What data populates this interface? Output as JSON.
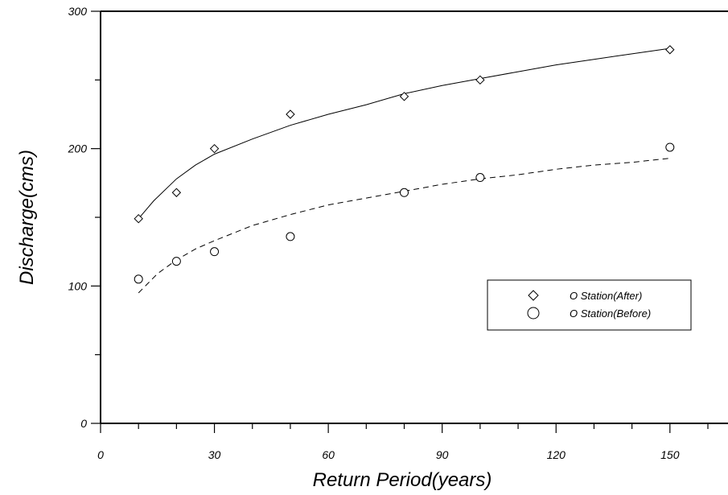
{
  "chart_data": {
    "type": "scatter",
    "title": "",
    "xlabel": "Return Period(years)",
    "ylabel": "Discharge(cms)",
    "xlim": [
      0,
      160
    ],
    "ylim": [
      0,
      300
    ],
    "x_ticks": [
      0,
      30,
      60,
      90,
      120,
      150
    ],
    "x_tick_labels": [
      "0",
      "30",
      "60",
      "90",
      "120",
      "150"
    ],
    "y_ticks": [
      0,
      100,
      200,
      300
    ],
    "y_tick_labels": [
      "0",
      "100",
      "200",
      "300"
    ],
    "grid": false,
    "legend_position": "right",
    "series": [
      {
        "name": "O Station(After)",
        "marker": "diamond",
        "line_style": "solid",
        "x": [
          10,
          20,
          30,
          50,
          80,
          100,
          150
        ],
        "y": [
          149,
          168,
          200,
          225,
          238,
          250,
          272
        ],
        "fit": [
          [
            10,
            149
          ],
          [
            14,
            162
          ],
          [
            20,
            178
          ],
          [
            25,
            188
          ],
          [
            30,
            196
          ],
          [
            40,
            207
          ],
          [
            50,
            217
          ],
          [
            60,
            225
          ],
          [
            70,
            232
          ],
          [
            80,
            240
          ],
          [
            90,
            246
          ],
          [
            100,
            251
          ],
          [
            110,
            256
          ],
          [
            120,
            261
          ],
          [
            130,
            265
          ],
          [
            140,
            269
          ],
          [
            150,
            273
          ]
        ]
      },
      {
        "name": "O Station(Before)",
        "marker": "circle",
        "line_style": "dashed",
        "x": [
          10,
          20,
          30,
          50,
          80,
          100,
          150
        ],
        "y": [
          105,
          118,
          125,
          136,
          168,
          179,
          201
        ],
        "fit": [
          [
            10,
            95
          ],
          [
            15,
            109
          ],
          [
            20,
            119
          ],
          [
            25,
            127
          ],
          [
            30,
            133
          ],
          [
            40,
            144
          ],
          [
            50,
            152
          ],
          [
            60,
            159
          ],
          [
            70,
            164
          ],
          [
            80,
            169
          ],
          [
            90,
            174
          ],
          [
            100,
            178
          ],
          [
            110,
            181
          ],
          [
            120,
            185
          ],
          [
            130,
            188
          ],
          [
            140,
            190
          ],
          [
            150,
            193
          ]
        ]
      }
    ]
  }
}
